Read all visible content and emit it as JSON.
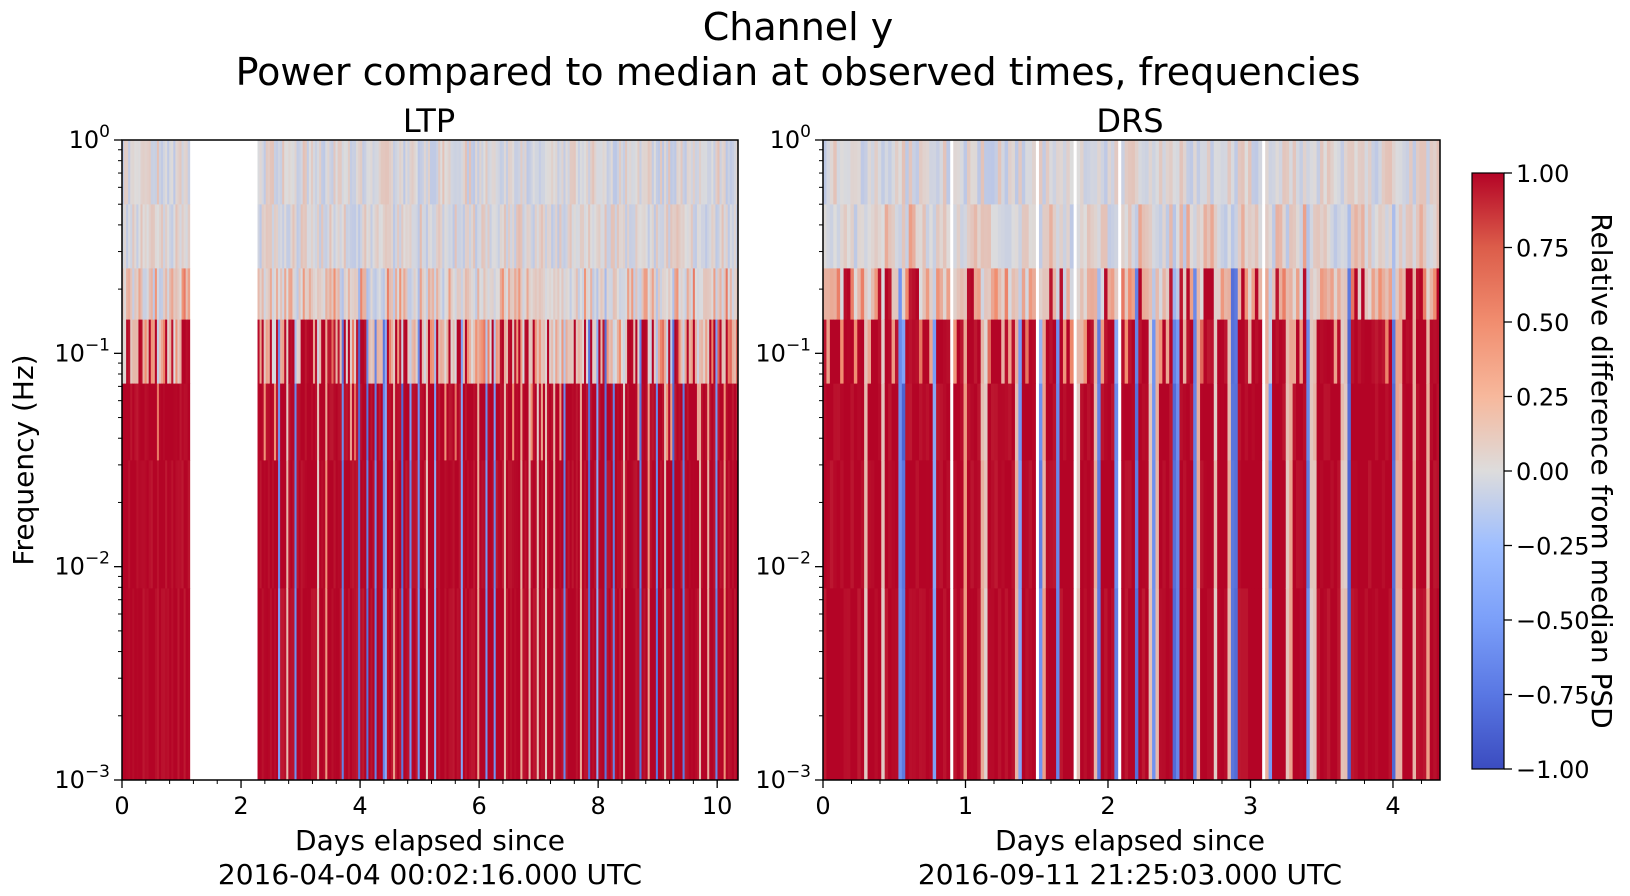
{
  "figure": {
    "title_line1": "Channel y",
    "title_line2": "Power compared to median at observed times, frequencies"
  },
  "chart_data": [
    {
      "type": "heatmap",
      "title": "LTP",
      "ylabel": "Frequency (Hz)",
      "xlabel_line1": "Days elapsed since",
      "xlabel_line2": "2016-04-04 00:02:16.000 UTC",
      "xlim": [
        0,
        10.35
      ],
      "ylim": [
        0.001,
        1
      ],
      "yscale": "log",
      "xticks": [
        0,
        2,
        4,
        6,
        8,
        10
      ],
      "xtick_labels": [
        "0",
        "2",
        "4",
        "6",
        "8",
        "10"
      ],
      "yticks": [
        0.001,
        0.01,
        0.1,
        1
      ],
      "ytick_labels": [
        {
          "base": "10",
          "exp": "−3"
        },
        {
          "base": "10",
          "exp": "−2"
        },
        {
          "base": "10",
          "exp": "−1"
        },
        {
          "base": "10",
          "exp": "0"
        }
      ],
      "data_gaps": [
        [
          1.13,
          2.27
        ]
      ],
      "strong_bands_days": [
        0.05,
        0.12,
        0.21,
        0.3,
        0.38,
        0.47,
        0.55,
        0.63,
        0.72,
        0.8,
        0.9,
        1.0,
        1.08,
        2.35,
        2.45,
        2.58,
        2.7,
        2.85,
        2.98,
        3.1,
        3.22,
        3.37,
        3.5,
        3.62,
        3.78,
        3.9,
        4.05,
        4.2,
        4.33,
        4.5,
        4.65,
        4.78,
        4.92,
        5.05,
        5.2,
        5.35,
        5.48,
        5.62,
        5.78,
        5.9,
        6.05,
        6.2,
        6.35,
        6.5,
        6.62,
        6.78,
        6.92,
        7.05,
        7.2,
        7.35,
        7.5,
        7.62,
        7.78,
        7.92,
        8.05,
        8.2,
        8.35,
        8.5,
        8.62,
        8.78,
        8.92,
        9.05,
        9.2,
        9.35,
        9.5,
        9.62,
        9.78,
        9.92,
        10.05,
        10.2,
        10.3
      ]
    },
    {
      "type": "heatmap",
      "title": "DRS",
      "xlabel_line1": "Days elapsed since",
      "xlabel_line2": "2016-09-11 21:25:03.000 UTC",
      "xlim": [
        0,
        4.33
      ],
      "ylim": [
        0.001,
        1
      ],
      "yscale": "log",
      "xticks": [
        0,
        1,
        2,
        3,
        4
      ],
      "xtick_labels": [
        "0",
        "1",
        "2",
        "3",
        "4"
      ],
      "yticks": [
        0.001,
        0.01,
        0.1,
        1
      ],
      "ytick_labels": [
        {
          "base": "10",
          "exp": "−3"
        },
        {
          "base": "10",
          "exp": "−2"
        },
        {
          "base": "10",
          "exp": "−1"
        },
        {
          "base": "10",
          "exp": "0"
        }
      ],
      "data_gaps": [
        [
          0.9,
          0.92
        ],
        [
          1.5,
          1.52
        ],
        [
          1.75,
          1.78
        ],
        [
          2.07,
          2.09
        ],
        [
          3.09,
          3.11
        ]
      ],
      "strong_bands_days": [
        0.05,
        0.15,
        0.25,
        0.36,
        0.48,
        0.62,
        0.72,
        0.85,
        0.95,
        1.05,
        1.2,
        1.3,
        1.45,
        1.6,
        1.7,
        1.85,
        2.0,
        2.15,
        2.25,
        2.4,
        2.55,
        2.7,
        2.8,
        2.95,
        3.05,
        3.2,
        3.35,
        3.5,
        3.58,
        3.75,
        3.85,
        3.95,
        4.1,
        4.2,
        4.3
      ]
    }
  ],
  "colorbar": {
    "label": "Relative difference from median PSD",
    "colormap": "coolwarm",
    "range": [
      -1,
      1
    ],
    "ticks": [
      1.0,
      0.75,
      0.5,
      0.25,
      0.0,
      -0.25,
      -0.5,
      -0.75,
      -1.0
    ],
    "tick_labels": [
      "1.00",
      "0.75",
      "0.50",
      "0.25",
      "0.00",
      "−0.25",
      "−0.50",
      "−0.75",
      "−1.00"
    ],
    "colors": {
      "min": "#3b4cc0",
      "mid": "#dddddd",
      "max": "#b40426"
    }
  }
}
